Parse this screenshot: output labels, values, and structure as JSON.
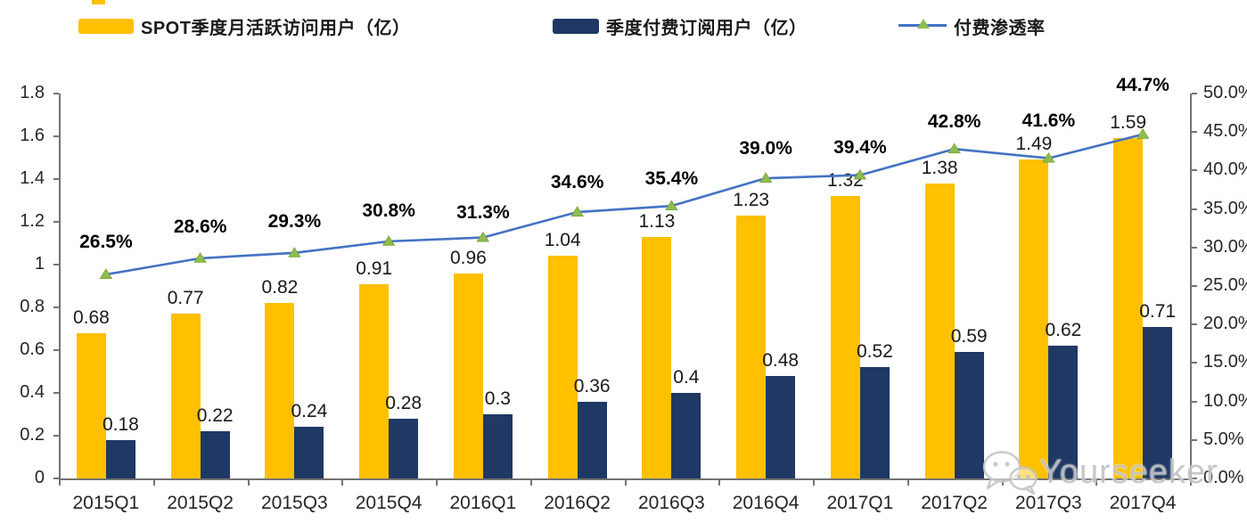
{
  "legend": [
    {
      "label": "SPOT季度月活跃访问用户（亿）",
      "color": "#FFC000",
      "type": "bar"
    },
    {
      "label": "季度付费订阅用户（亿）",
      "color": "#1F3864",
      "type": "bar"
    },
    {
      "label": "付费渗透率",
      "color": "#4472C4",
      "marker_color": "#8FBC4F",
      "type": "line"
    }
  ],
  "watermark": {
    "text": "Yourseeker",
    "icon": "wechat-icon"
  },
  "chart_data": {
    "type": "bar",
    "subtype": "grouped bars + percentage line, dual axis",
    "categories": [
      "2015Q1",
      "2015Q2",
      "2015Q3",
      "2015Q4",
      "2016Q1",
      "2016Q2",
      "2016Q3",
      "2016Q4",
      "2017Q1",
      "2017Q2",
      "2017Q3",
      "2017Q4"
    ],
    "series": [
      {
        "name": "SPOT季度月活跃访问用户（亿）",
        "type": "bar",
        "axis": "left",
        "color": "#FFC000",
        "values": [
          0.68,
          0.77,
          0.82,
          0.91,
          0.96,
          1.04,
          1.13,
          1.23,
          1.32,
          1.38,
          1.49,
          1.59
        ],
        "labels": [
          "0.68",
          "0.77",
          "0.82",
          "0.91",
          "0.96",
          "1.04",
          "1.13",
          "1.23",
          "1.32",
          "1.38",
          "1.49",
          "1.59"
        ]
      },
      {
        "name": "季度付费订阅用户（亿）",
        "type": "bar",
        "axis": "left",
        "color": "#1F3864",
        "values": [
          0.18,
          0.22,
          0.24,
          0.28,
          0.3,
          0.36,
          0.4,
          0.48,
          0.52,
          0.59,
          0.62,
          0.71
        ],
        "labels": [
          "0.18",
          "0.22",
          "0.24",
          "0.28",
          "0.3",
          "0.36",
          "0.4",
          "0.48",
          "0.52",
          "0.59",
          "0.62",
          "0.71"
        ]
      },
      {
        "name": "付费渗透率",
        "type": "line",
        "axis": "right",
        "color": "#4472C4",
        "marker": "triangle",
        "marker_color": "#8FBC4F",
        "values": [
          26.5,
          28.6,
          29.3,
          30.8,
          31.3,
          34.6,
          35.4,
          39.0,
          39.4,
          42.8,
          41.6,
          44.7
        ],
        "labels": [
          "26.5%",
          "28.6%",
          "29.3%",
          "30.8%",
          "31.3%",
          "34.6%",
          "35.4%",
          "39.0%",
          "39.4%",
          "42.8%",
          "41.6%",
          "44.7%"
        ],
        "label_dy": [
          -36,
          -35,
          -35,
          -34,
          -28,
          -33,
          -30,
          -33,
          -31,
          -30,
          -42,
          -55
        ]
      }
    ],
    "left_axis": {
      "min": 0,
      "max": 1.8,
      "step": 0.2,
      "ticks": [
        "0",
        "0.2",
        "0.4",
        "0.6",
        "0.8",
        "1",
        "1.2",
        "1.4",
        "1.6",
        "1.8"
      ]
    },
    "right_axis": {
      "min": 0,
      "max": 50,
      "step": 5,
      "ticks": [
        "0.0%",
        "5.0%",
        "10.0%",
        "15.0%",
        "20.0%",
        "25.0%",
        "30.0%",
        "35.0%",
        "40.0%",
        "45.0%",
        "50.0%"
      ]
    },
    "grid": false,
    "legend_position": "top"
  }
}
